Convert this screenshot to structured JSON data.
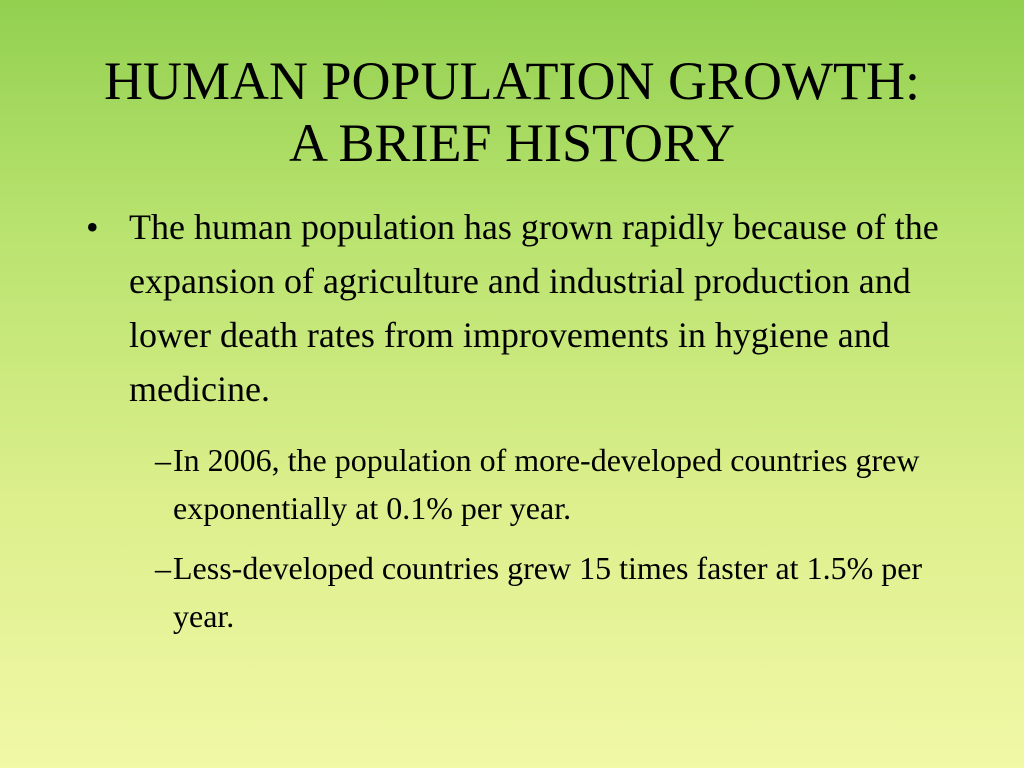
{
  "slide": {
    "title_lines": [
      "HUMAN POPULATION GROWTH:",
      "A BRIEF HISTORY"
    ],
    "bullets": [
      {
        "marker": "•",
        "text": "The human population has grown rapidly because of the expansion of agriculture and industrial production and lower death rates from improvements in hygiene and medicine.",
        "sub_bullets": [
          {
            "marker": "–",
            "text": "In 2006, the population of more-developed countries grew exponentially at 0.1% per year."
          },
          {
            "marker": "–",
            "text": "Less-developed countries grew 15 times faster at 1.5% per year."
          }
        ]
      }
    ],
    "colors": {
      "background_top": "#92d050",
      "background_bottom": "#f1f8a6",
      "text": "#000000"
    }
  }
}
